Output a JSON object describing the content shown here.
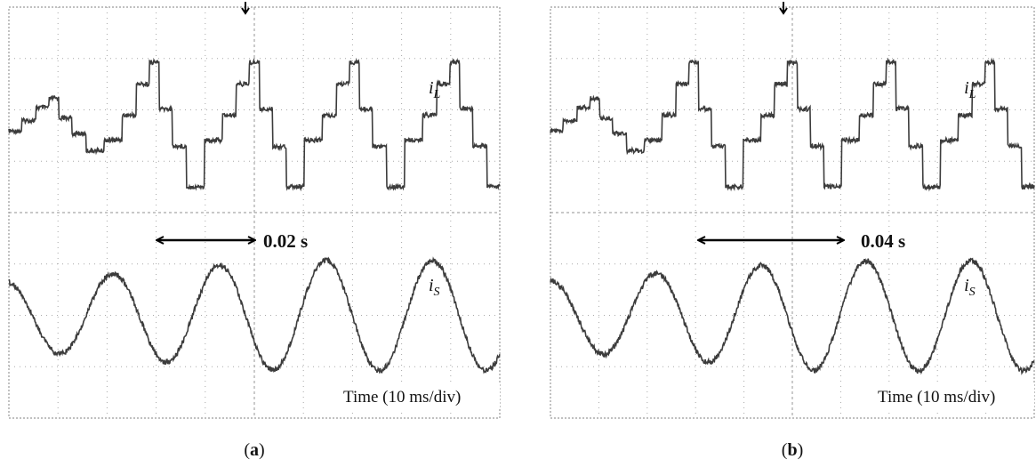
{
  "chart_data": [
    {
      "type": "line",
      "panel_label": "(a)",
      "x_unit_text": "Time (10 ms/div)",
      "grid": true,
      "series": [
        {
          "name": "i_L",
          "label_main": "i",
          "label_sub": "L"
        },
        {
          "name": "i_S",
          "label_main": "i",
          "label_sub": "S"
        }
      ],
      "annotation": {
        "text": "0.02 s"
      }
    },
    {
      "type": "line",
      "panel_label": "(b)",
      "x_unit_text": "Time (10 ms/div)",
      "grid": true,
      "series": [
        {
          "name": "i_L",
          "label_main": "i",
          "label_sub": "L"
        },
        {
          "name": "i_S",
          "label_main": "i",
          "label_sub": "S"
        }
      ],
      "annotation": {
        "text": "0.04 s"
      }
    }
  ],
  "colors": {
    "trace": "#3c3c3c",
    "grid": "#a8a8a8",
    "frame": "#9a9a9a",
    "text": "#111111"
  }
}
